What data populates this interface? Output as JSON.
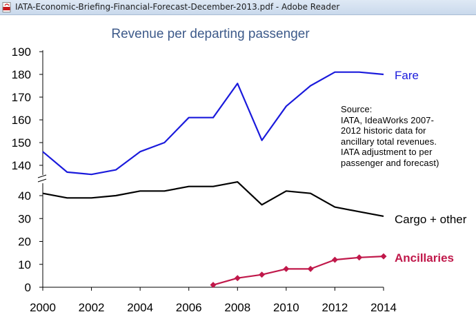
{
  "window": {
    "title": "IATA-Economic-Briefing-Financial-Forecast-December-2013.pdf - Adobe Reader",
    "icon": "pdf-document-icon"
  },
  "source_note": [
    "Source:",
    "IATA, IdeaWorks 2007-",
    "2012 historic data for",
    "ancillary total revenues.",
    "IATA adjustment to per",
    "passenger and forecast)"
  ],
  "colors": {
    "fare": "#1a1adc",
    "cargo": "#000000",
    "ancillaries": "#c0184a",
    "title": "#3d5a8a"
  },
  "chart_data": {
    "type": "line",
    "title": "Revenue per departing passenger",
    "xlabel": "",
    "ylabel": "",
    "broken_y_axis": true,
    "x_ticks": [
      "2000",
      "2002",
      "2004",
      "2006",
      "2008",
      "2010",
      "2012",
      "2014"
    ],
    "y_ticks_lower": [
      "0",
      "10",
      "20",
      "30",
      "40"
    ],
    "y_ticks_upper": [
      "140",
      "150",
      "160",
      "170",
      "180",
      "190"
    ],
    "xlim": [
      2000,
      2014
    ],
    "ylim_lower": [
      0,
      40
    ],
    "ylim_upper": [
      140,
      190
    ],
    "grid": false,
    "legend": "inline labels at right end of each series",
    "series": [
      {
        "name": "Fare",
        "key": "fare",
        "x": [
          2000,
          2001,
          2002,
          2003,
          2004,
          2005,
          2006,
          2007,
          2008,
          2009,
          2010,
          2011,
          2012,
          2013,
          2014
        ],
        "values": [
          146,
          137,
          136,
          138,
          146,
          150,
          161,
          161,
          176,
          151,
          166,
          175,
          181,
          181,
          180
        ]
      },
      {
        "name": "Cargo + other",
        "key": "cargo",
        "x": [
          2000,
          2001,
          2002,
          2003,
          2004,
          2005,
          2006,
          2007,
          2008,
          2009,
          2010,
          2011,
          2012,
          2013,
          2014
        ],
        "values": [
          41,
          39,
          39,
          40,
          42,
          42,
          44,
          44,
          46,
          36,
          42,
          41,
          35,
          33,
          31
        ]
      },
      {
        "name": "Ancillaries",
        "key": "ancillaries",
        "x": [
          2007,
          2008,
          2009,
          2010,
          2011,
          2012,
          2013,
          2014
        ],
        "values": [
          1,
          4,
          5.5,
          8,
          8,
          12,
          13,
          13.5
        ]
      }
    ]
  }
}
